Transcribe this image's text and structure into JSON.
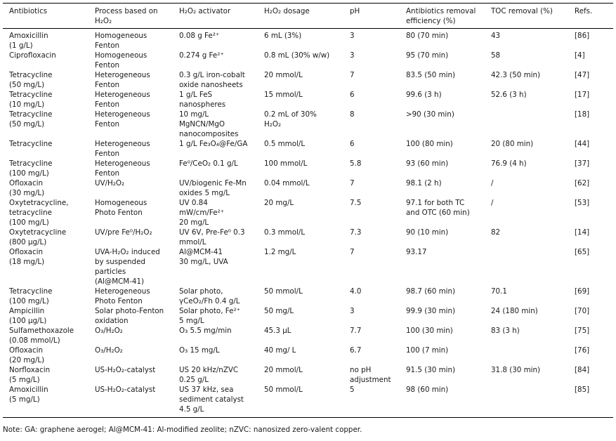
{
  "table": {
    "headers": [
      "Antibiotics",
      "Process based on\nH₂O₂",
      "H₂O₂ activator",
      "H₂O₂ dosage",
      "pH",
      "Antibiotics removal\nefficiency (%)",
      "TOC removal (%)",
      "Refs."
    ],
    "rows": [
      [
        "Amoxicillin\n(1 g/L)",
        "Homogeneous\nFenton",
        "0.08 g Fe²⁺",
        "6 mL (3%)",
        "3",
        "80 (70 min)",
        "43",
        "[86]"
      ],
      [
        "Ciprofloxacin",
        "Homogeneous\nFenton",
        "0.274 g Fe²⁺",
        "0.8 mL (30% w/w)",
        "3",
        "95 (70 min)",
        "58",
        "[4]"
      ],
      [
        "Tetracycline\n(50 mg/L)",
        "Heterogeneous\nFenton",
        "0.3 g/L iron-cobalt\noxide nanosheets",
        "20 mmol/L",
        "7",
        "83.5 (50 min)",
        "42.3 (50 min)",
        "[47]"
      ],
      [
        "Tetracycline\n(10 mg/L)",
        "Heterogeneous\nFenton",
        "1 g/L FeS\nnanospheres",
        "15 mmol/L",
        "6",
        "99.6 (3 h)",
        "52.6 (3 h)",
        "[17]"
      ],
      [
        "Tetracycline\n(50 mg/L)",
        "Heterogeneous\nFenton",
        "10 mg/L\nMgNCN/MgO\nnanocomposites",
        "0.2 mL of 30%\nH₂O₂",
        "8",
        ">90 (30 min)",
        "",
        "[18]"
      ],
      [
        "Tetracycline",
        "Heterogeneous\nFenton",
        "1 g/L Fe₃O₄@Fe/GA",
        "0.5 mmol/L",
        "6",
        "100 (80 min)",
        "20 (80 min)",
        "[44]"
      ],
      [
        "Tetracycline\n(100 mg/L)",
        "Heterogeneous\nFenton",
        "Fe⁰/CeO₂ 0.1 g/L",
        "100 mmol/L",
        "5.8",
        "93 (60 min)",
        "76.9 (4 h)",
        "[37]"
      ],
      [
        "Ofloxacin\n(30 mg/L)",
        "UV/H₂O₂",
        "UV/biogenic Fe-Mn\noxides 5 mg/L",
        "0.04 mmol/L",
        "7",
        "98.1 (2 h)",
        "/",
        "[62]"
      ],
      [
        "Oxytetracycline,\ntetracycline\n(100 mg/L)",
        "Homogeneous\nPhoto Fenton",
        "UV 0.84\nmW/cm/Fe²⁺\n20 mg/L",
        "20 mg/L",
        "7.5",
        "97.1 for both TC\nand OTC (60 min)",
        "/",
        "[53]"
      ],
      [
        "Oxytetracycline\n(800 μg/L)",
        "UV/pre Fe⁰/H₂O₂",
        "UV 6V, Pre-Fe⁰ 0.3\nmmol/L",
        "0.3 mmol/L",
        "7.3",
        "90 (10 min)",
        "82",
        "[14]"
      ],
      [
        "Ofloxacin\n(18 mg/L)",
        "UVA-H₂O₂ induced\nby suspended\nparticles\n(Al@MCM-41)",
        "Al@MCM-41\n30 mg/L, UVA",
        "1.2 mg/L",
        "7",
        "93.17",
        "",
        "[65]"
      ],
      [
        "Tetracycline\n(100 mg/L)",
        "Heterogeneous\nPhoto Fenton",
        "Solar photo,\nγCeO₂/Fh 0.4 g/L",
        "50 mmol/L",
        "4.0",
        "98.7 (60 min)",
        "70.1",
        "[69]"
      ],
      [
        "Ampicillin\n(100 μg/L)",
        "Solar photo-Fenton\noxidation",
        "Solar photo, Fe²⁺\n5 mg/L",
        "50 mg/L",
        "3",
        "99.9 (30 min)",
        "24 (180 min)",
        "[70]"
      ],
      [
        "Sulfamethoxazole\n(0.08 mmol/L)",
        "O₃/H₂O₂",
        "O₃ 5.5 mg/min",
        "45.3 μL",
        "7.7",
        "100 (30 min)",
        "83 (3 h)",
        "[75]"
      ],
      [
        "Ofloxacin\n(20 mg/L)",
        "O₃/H₂O₂",
        "O₃ 15 mg/L",
        "40 mg/ L",
        "6.7",
        "100 (7 min)",
        "",
        "[76]"
      ],
      [
        "Norfloxacin\n(5 mg/L)",
        "US-H₂O₂-catalyst",
        "US 20 kHz/nZVC\n0.25 g/L",
        "20 mmol/L",
        "no pH\nadjustment",
        "91.5 (30 min)",
        "31.8 (30 min)",
        "[84]"
      ],
      [
        "Amoxicillin\n(5 mg/L)",
        "US-H₂O₂-catalyst",
        "US 37 kHz, sea\nsediment catalyst\n4.5 g/L",
        "50 mmol/L",
        "5",
        "98 (60 min)",
        "",
        "[85]"
      ]
    ]
  },
  "note": "Note: GA: graphene aerogel; Al@MCM-41: Al-modified zeolite; nZVC: nanosized zero-valent copper."
}
